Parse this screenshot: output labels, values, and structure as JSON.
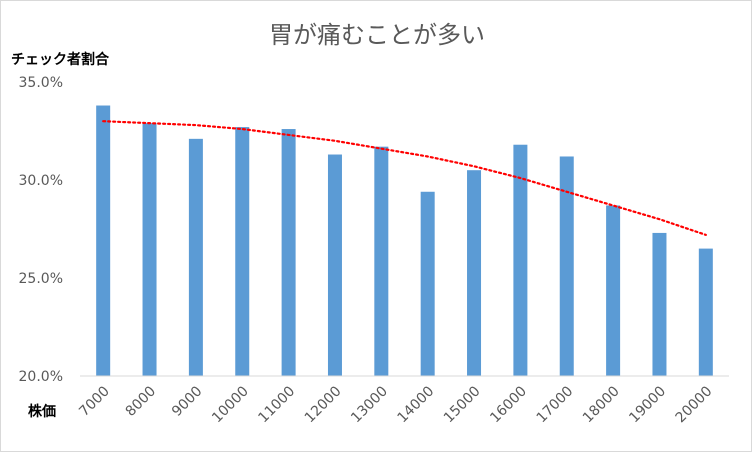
{
  "chart_data": {
    "type": "bar",
    "title": "胃が痛むことが多い",
    "ylabel": "チェック者割合",
    "xlabel": "株価",
    "categories": [
      "7000",
      "8000",
      "9000",
      "10000",
      "11000",
      "12000",
      "13000",
      "14000",
      "15000",
      "16000",
      "17000",
      "18000",
      "19000",
      "20000"
    ],
    "series": [
      {
        "values": [
          33.8,
          32.9,
          32.1,
          32.7,
          32.6,
          31.3,
          31.7,
          29.4,
          30.5,
          31.8,
          31.2,
          28.7,
          27.3,
          26.5
        ]
      }
    ],
    "trendline": {
      "type": "polynomial",
      "values": [
        33.0,
        32.9,
        32.8,
        32.6,
        32.3,
        32.0,
        31.6,
        31.2,
        30.7,
        30.1,
        29.4,
        28.7,
        28.0,
        27.2
      ]
    },
    "ylim": [
      20,
      35
    ],
    "yticks": [
      "20.0%",
      "25.0%",
      "30.0%",
      "35.0%"
    ],
    "yticks_values": [
      20,
      25,
      30,
      35
    ],
    "grid": false,
    "legend": "none",
    "colors": {
      "bar": "#5b9bd5",
      "trend": "#ff0000",
      "axis": "#d9d9d9"
    }
  }
}
